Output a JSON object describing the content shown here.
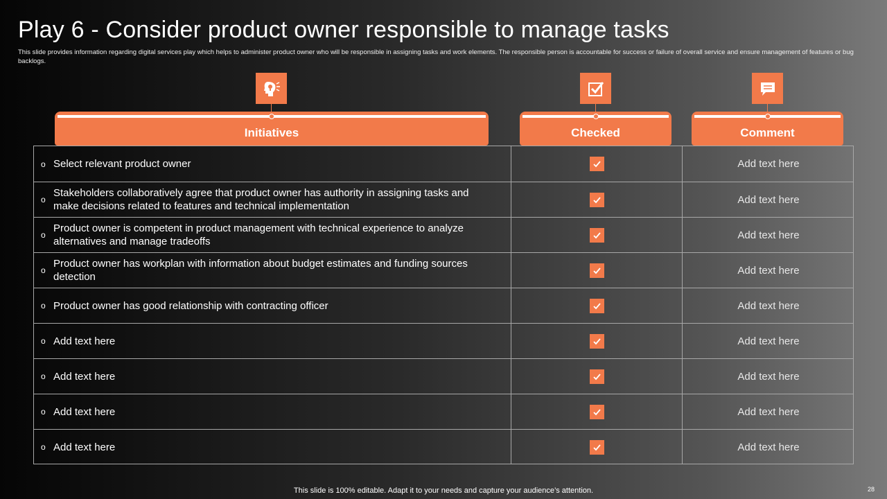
{
  "slide": {
    "title": "Play 6 - Consider product owner responsible to manage tasks",
    "subtitle": "This slide provides information regarding digital services play which helps to administer product owner who will be responsible in assigning tasks and work elements. The responsible person is accountable for success or failure of overall service and ensure management of features or bug backlogs.",
    "footer": "This slide is 100% editable. Adapt it to your needs and capture your audience’s attention.",
    "page_number": "28",
    "accent_color": "#f27a4a"
  },
  "columns": [
    {
      "label": "Initiatives",
      "icon": "head-idea-icon"
    },
    {
      "label": "Checked",
      "icon": "checkbox-icon"
    },
    {
      "label": "Comment",
      "icon": "speech-bubble-icon"
    }
  ],
  "rows": [
    {
      "initiative": "Select relevant product owner",
      "checked": true,
      "comment": "Add text here"
    },
    {
      "initiative": "Stakeholders collaboratively agree that product owner has authority in assigning tasks and make decisions related to features and technical implementation",
      "checked": true,
      "comment": "Add text here"
    },
    {
      "initiative": "Product owner is competent in product management with technical experience to analyze alternatives and manage tradeoffs",
      "checked": true,
      "comment": "Add text here"
    },
    {
      "initiative": "Product owner has workplan with information about budget estimates and funding sources detection",
      "checked": true,
      "comment": "Add text here"
    },
    {
      "initiative": "Product owner has good relationship with contracting officer",
      "checked": true,
      "comment": "Add text here"
    },
    {
      "initiative": "Add text here",
      "checked": true,
      "comment": "Add text here"
    },
    {
      "initiative": "Add text here",
      "checked": true,
      "comment": "Add text here"
    },
    {
      "initiative": "Add text here",
      "checked": true,
      "comment": "Add text here"
    },
    {
      "initiative": "Add text here",
      "checked": true,
      "comment": "Add text here"
    }
  ]
}
